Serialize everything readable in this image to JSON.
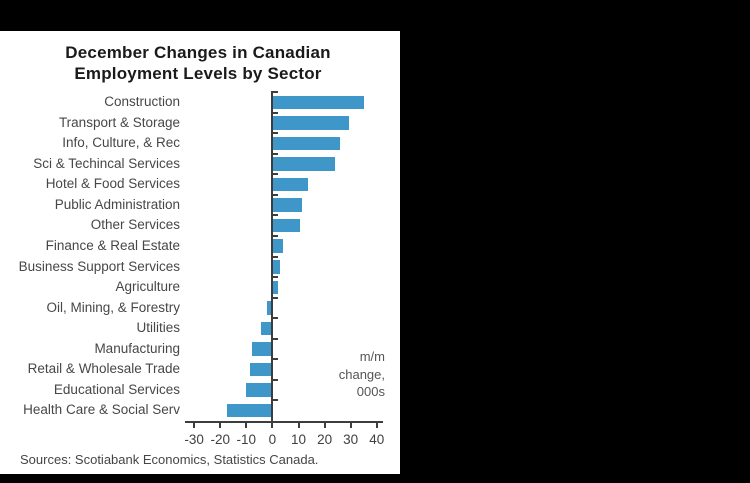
{
  "chart": {
    "title_lines": [
      "December Changes in Canadian",
      "Employment Levels by Sector"
    ],
    "unit_label_lines": [
      "m/m",
      "change,",
      "000s"
    ],
    "source": "Sources: Scotiabank Economics, Statistics Canada."
  },
  "chart_data": {
    "type": "bar",
    "orientation": "horizontal",
    "title": "December Changes in Canadian Employment Levels by Sector",
    "categories": [
      "Construction",
      "Transport & Storage",
      "Info, Culture, & Rec",
      "Sci & Techincal Services",
      "Hotel & Food Services",
      "Public Administration",
      "Other Services",
      "Finance & Real Estate",
      "Business Support Services",
      "Agriculture",
      "Oil, Mining, & Forestry",
      "Utilities",
      "Manufacturing",
      "Retail & Wholesale Trade",
      "Educational Services",
      "Health Care & Social Serv"
    ],
    "values": [
      35,
      29.5,
      26,
      24,
      13.5,
      11.5,
      10.5,
      4,
      3,
      2,
      -2,
      -4.5,
      -8,
      -8.5,
      -10,
      -17.5
    ],
    "xlabel": "m/m change, 000s",
    "ylabel": "",
    "x_ticks": [
      -30,
      -20,
      -10,
      0,
      10,
      20,
      30,
      40
    ],
    "xlim": [
      -33.5,
      42
    ],
    "grid": false,
    "legend": "none",
    "bar_color": "#3E96C9",
    "axis_color": "#3d3d3d",
    "source": "Sources: Scotiabank Economics, Statistics Canada."
  }
}
